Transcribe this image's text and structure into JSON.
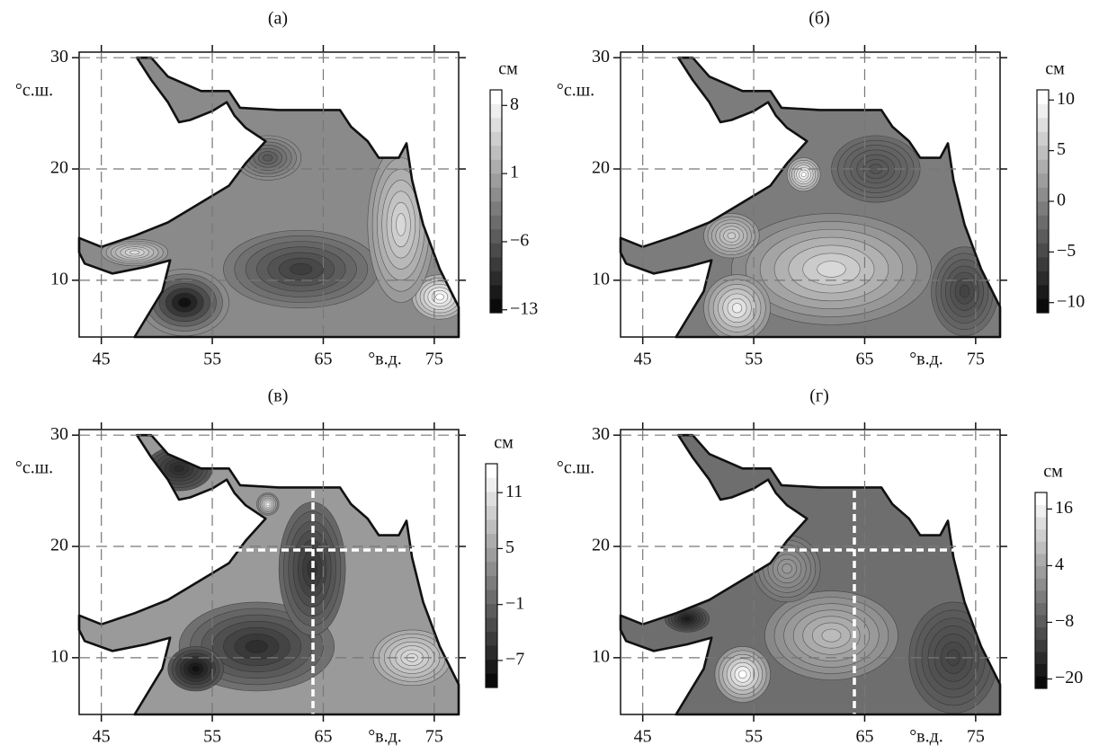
{
  "panels": [
    {
      "label": "(а)",
      "lat_label": "°с.ш.",
      "lon_label": "°в.д.",
      "xlim": [
        43,
        77.2
      ],
      "ylim": [
        4.9,
        30.5
      ],
      "xticks": [
        45,
        55,
        65,
        75
      ],
      "yticks": [
        10,
        20,
        30
      ],
      "colorbar": {
        "unit": "см",
        "lim": [
          -13.3,
          9.6
        ],
        "ticks": [
          8,
          1,
          {
            "value": -6,
            "label": "−6"
          },
          {
            "value": -13,
            "label": "−13"
          }
        ]
      }
    },
    {
      "label": "(б)",
      "lat_label": "°с.ш.",
      "lon_label": "°в.д.",
      "xlim": [
        43,
        77.2
      ],
      "ylim": [
        4.9,
        30.5
      ],
      "xticks": [
        45,
        55,
        65,
        75
      ],
      "yticks": [
        10,
        20,
        30
      ],
      "colorbar": {
        "unit": "см",
        "lim": [
          -11,
          11
        ],
        "ticks": [
          10,
          5,
          0,
          {
            "value": -5,
            "label": "−5"
          },
          {
            "value": -10,
            "label": "−10"
          }
        ]
      }
    },
    {
      "label": "(в)",
      "lat_label": "°с.ш.",
      "lon_label": "°в.д.",
      "xlim": [
        43,
        77.2
      ],
      "ylim": [
        4.9,
        30.5
      ],
      "xticks": [
        45,
        55,
        65,
        75
      ],
      "yticks": [
        10,
        20,
        30
      ],
      "colorbar": {
        "unit": "см",
        "lim": [
          -9.9,
          14.1
        ],
        "ticks": [
          11,
          5,
          {
            "value": -1,
            "label": "−1"
          },
          {
            "value": -7,
            "label": "−7"
          }
        ]
      }
    },
    {
      "label": "(г)",
      "lat_label": "°с.ш.",
      "lon_label": "°в.д.",
      "xlim": [
        43,
        77.2
      ],
      "ylim": [
        4.9,
        30.5
      ],
      "xticks": [
        45,
        55,
        65,
        75
      ],
      "yticks": [
        10,
        20,
        30
      ],
      "colorbar": {
        "unit": "см",
        "lim": [
          -22,
          19.5
        ],
        "ticks": [
          16,
          4,
          {
            "value": -8,
            "label": "−8"
          },
          {
            "value": -20,
            "label": "−20"
          }
        ]
      }
    }
  ]
}
